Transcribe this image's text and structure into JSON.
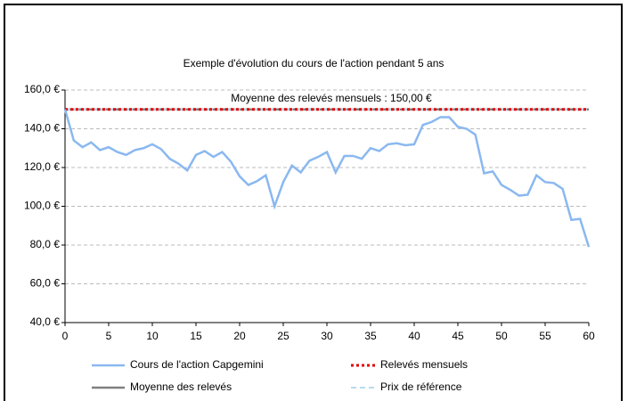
{
  "chart_data": {
    "type": "line",
    "title": "Exemple d'évolution du cours de l'action pendant 5 ans",
    "annotation": "Moyenne des relevés mensuels : 150,00 €",
    "x": [
      0,
      1,
      2,
      3,
      4,
      5,
      6,
      7,
      8,
      9,
      10,
      11,
      12,
      13,
      14,
      15,
      16,
      17,
      18,
      19,
      20,
      21,
      22,
      23,
      24,
      25,
      26,
      27,
      28,
      29,
      30,
      31,
      32,
      33,
      34,
      35,
      36,
      37,
      38,
      39,
      40,
      41,
      42,
      43,
      44,
      45,
      46,
      47,
      48,
      49,
      50,
      51,
      52,
      53,
      54,
      55,
      56,
      57,
      58,
      59,
      60
    ],
    "series": [
      {
        "name": "Moyenne des relevés",
        "color": "#808080",
        "style": "solid",
        "values": [
          150,
          150,
          150,
          150,
          150,
          150,
          150,
          150,
          150,
          150,
          150,
          150,
          150,
          150,
          150,
          150,
          150,
          150,
          150,
          150,
          150,
          150,
          150,
          150,
          150,
          150,
          150,
          150,
          150,
          150,
          150,
          150,
          150,
          150,
          150,
          150,
          150,
          150,
          150,
          150,
          150,
          150,
          150,
          150,
          150,
          150,
          150,
          150,
          150,
          150,
          150,
          150,
          150,
          150,
          150,
          150,
          150,
          150,
          150,
          150,
          150
        ]
      },
      {
        "name": "Prix de référence",
        "color": "#b7dcef",
        "style": "dashed",
        "values": [
          150,
          150,
          150,
          150,
          150,
          150,
          150,
          150,
          150,
          150,
          150,
          150,
          150,
          150,
          150,
          150,
          150,
          150,
          150,
          150,
          150,
          150,
          150,
          150,
          150,
          150,
          150,
          150,
          150,
          150,
          150,
          150,
          150,
          150,
          150,
          150,
          150,
          150,
          150,
          150,
          150,
          150,
          150,
          150,
          150,
          150,
          150,
          150,
          150,
          150,
          150,
          150,
          150,
          150,
          150,
          150,
          150,
          150,
          150,
          150,
          150
        ]
      },
      {
        "name": "Relevés mensuels",
        "color": "#e00000",
        "style": "dotted",
        "values": [
          150,
          150,
          150,
          150,
          150,
          150,
          150,
          150,
          150,
          150,
          150,
          150,
          150,
          150,
          150,
          150,
          150,
          150,
          150,
          150,
          150,
          150,
          150,
          150,
          150,
          150,
          150,
          150,
          150,
          150,
          150,
          150,
          150,
          150,
          150,
          150,
          150,
          150,
          150,
          150,
          150,
          150,
          150,
          150,
          150,
          150,
          150,
          150,
          150,
          150,
          150,
          150,
          150,
          150,
          150,
          150,
          150,
          150,
          150,
          150,
          150
        ]
      },
      {
        "name": "Cours de l'action Capgemini",
        "color": "#8ab8f0",
        "style": "solid",
        "values": [
          150,
          134,
          130.5,
          133,
          129,
          130.5,
          128,
          126.5,
          129,
          130,
          132,
          129.5,
          124.5,
          122,
          118.5,
          126.5,
          128.5,
          125.5,
          128,
          123,
          115.5,
          111,
          113,
          116,
          100,
          112.5,
          121,
          117.5,
          123.5,
          125.5,
          128,
          117.5,
          126,
          126,
          124.5,
          130,
          128.5,
          132,
          132.5,
          131.5,
          132,
          142,
          143.5,
          146,
          146,
          141,
          140,
          137,
          117,
          118,
          111,
          108.5,
          105.5,
          106,
          116,
          112.5,
          112,
          109,
          93,
          93.5,
          79
        ]
      }
    ],
    "legend_order": [
      3,
      2,
      0,
      1
    ],
    "xlim": [
      0,
      60
    ],
    "xticks": [
      0,
      5,
      10,
      15,
      20,
      25,
      30,
      35,
      40,
      45,
      50,
      55,
      60
    ],
    "ylim": [
      40,
      160
    ],
    "yticks": [
      {
        "value": 40,
        "label": "40,0 €"
      },
      {
        "value": 60,
        "label": "60,0 €"
      },
      {
        "value": 80,
        "label": "80,0 €"
      },
      {
        "value": 100,
        "label": "100,0 €"
      },
      {
        "value": 120,
        "label": "120,0 €"
      },
      {
        "value": 140,
        "label": "140,0 €"
      },
      {
        "value": 160,
        "label": "160,0 €"
      }
    ],
    "grid": true
  }
}
